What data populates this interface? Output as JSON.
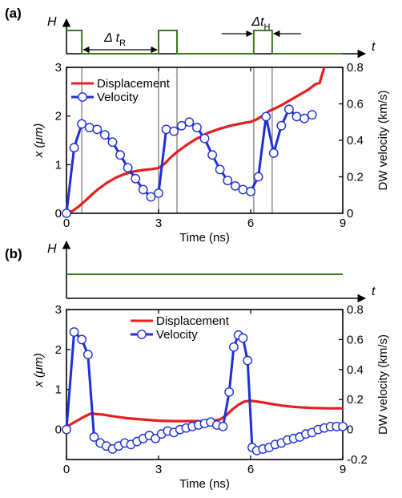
{
  "colors": {
    "displacement": "#e61e1e",
    "velocity": "#1e2fd6",
    "pulse": "#3a7a1e",
    "guide": "#a0a0a0"
  },
  "panels": [
    {
      "label": "(a)",
      "h_symbol": "H",
      "t_symbol": "t",
      "annot_tR": "Δ t",
      "annot_tR_sub": "R",
      "annot_tH": "Δt",
      "annot_tH_sub": "H"
    },
    {
      "label": "(b)",
      "h_symbol": "H",
      "t_symbol": "t"
    }
  ],
  "chart_data": [
    {
      "type": "line",
      "panel": "a",
      "xlabel": "Time (ns)",
      "ylabel_left": "x (μm)",
      "ylabel_right": "DW velocity (km/s)",
      "xlim": [
        0,
        9
      ],
      "ylim_left": [
        0,
        3
      ],
      "ylim_right": [
        0,
        0.8
      ],
      "xticks": [
        "0",
        "3",
        "6",
        "9"
      ],
      "yticks_left": [
        "0",
        "1",
        "2",
        "3"
      ],
      "yticks_right": [
        "0",
        "0.2",
        "0.4",
        "0.6",
        "0.8"
      ],
      "legend": [
        "Displacement",
        "Velocity"
      ],
      "legend_position": "top-left",
      "guide_lines_x": [
        0.5,
        3.0,
        3.6,
        6.1,
        6.7
      ],
      "pulse_field": [
        {
          "start": 0,
          "end": 0.5
        },
        {
          "start": 3.0,
          "end": 3.6
        },
        {
          "start": 6.1,
          "end": 6.7
        }
      ],
      "series": [
        {
          "name": "Displacement",
          "axis": "left",
          "x": [
            0,
            0.2,
            0.4,
            0.6,
            0.8,
            1.0,
            1.3,
            1.6,
            1.9,
            2.2,
            2.5,
            2.8,
            3.0,
            3.2,
            3.4,
            3.6,
            3.9,
            4.2,
            4.6,
            5.0,
            5.4,
            5.8,
            6.0,
            6.2,
            6.4,
            6.6,
            6.8,
            7.0,
            7.3,
            7.6,
            7.9,
            8.1,
            8.25,
            8.3,
            8.4
          ],
          "y": [
            0,
            0.05,
            0.14,
            0.25,
            0.37,
            0.48,
            0.62,
            0.73,
            0.81,
            0.86,
            0.89,
            0.91,
            0.93,
            1.02,
            1.15,
            1.26,
            1.4,
            1.52,
            1.65,
            1.74,
            1.81,
            1.86,
            1.88,
            1.93,
            2.01,
            2.1,
            2.16,
            2.22,
            2.33,
            2.44,
            2.55,
            2.65,
            2.68,
            2.8,
            3.0
          ]
        },
        {
          "name": "Velocity",
          "axis": "right",
          "x": [
            0,
            0.25,
            0.5,
            0.75,
            1.0,
            1.25,
            1.5,
            1.75,
            2.0,
            2.25,
            2.5,
            2.75,
            3.0,
            3.25,
            3.5,
            3.75,
            4.0,
            4.25,
            4.5,
            4.75,
            5.0,
            5.25,
            5.5,
            5.75,
            6.0,
            6.25,
            6.5,
            6.75,
            7.0,
            7.25,
            7.5,
            7.75,
            8.0
          ],
          "y": [
            0,
            0.36,
            0.49,
            0.47,
            0.46,
            0.43,
            0.39,
            0.32,
            0.25,
            0.19,
            0.13,
            0.09,
            0.11,
            0.46,
            0.45,
            0.48,
            0.5,
            0.47,
            0.41,
            0.32,
            0.24,
            0.18,
            0.15,
            0.13,
            0.12,
            0.2,
            0.53,
            0.33,
            0.48,
            0.57,
            0.53,
            0.52,
            0.54
          ]
        }
      ]
    },
    {
      "type": "line",
      "panel": "b",
      "xlabel": "Time (ns)",
      "ylabel_left": "x (μm)",
      "ylabel_right": "DW velocity (km/s)",
      "xlim": [
        0,
        9
      ],
      "ylim_left": [
        -0.75,
        3
      ],
      "ylim_right": [
        -0.2,
        0.8
      ],
      "xticks": [
        "0",
        "3",
        "6",
        "9"
      ],
      "yticks_left": [
        "0",
        "1",
        "2",
        "3"
      ],
      "yticks_right": [
        "-0.2",
        "0",
        "0.2",
        "0.4",
        "0.6",
        "0.8"
      ],
      "legend": [
        "Displacement",
        "Velocity"
      ],
      "legend_position": "top-center",
      "constant_field": true,
      "series": [
        {
          "name": "Displacement",
          "axis": "left",
          "x": [
            0,
            0.3,
            0.6,
            0.8,
            1.2,
            1.6,
            2.0,
            2.5,
            3.0,
            3.5,
            4.0,
            4.5,
            4.8,
            5.0,
            5.2,
            5.4,
            5.6,
            5.8,
            6.0,
            6.3,
            6.6,
            7.0,
            7.5,
            8.0,
            8.5,
            9.0
          ],
          "y": [
            0.07,
            0.2,
            0.33,
            0.4,
            0.37,
            0.32,
            0.28,
            0.25,
            0.22,
            0.21,
            0.21,
            0.21,
            0.22,
            0.25,
            0.35,
            0.5,
            0.62,
            0.7,
            0.72,
            0.69,
            0.65,
            0.6,
            0.56,
            0.54,
            0.53,
            0.53
          ]
        },
        {
          "name": "Velocity",
          "axis": "right",
          "x": [
            0,
            0.25,
            0.5,
            0.7,
            0.9,
            1.1,
            1.3,
            1.5,
            1.7,
            1.9,
            2.1,
            2.3,
            2.5,
            2.7,
            2.9,
            3.1,
            3.3,
            3.5,
            3.7,
            3.9,
            4.1,
            4.3,
            4.5,
            4.7,
            4.9,
            5.1,
            5.3,
            5.45,
            5.6,
            5.75,
            5.9,
            6.05,
            6.2,
            6.4,
            6.6,
            6.8,
            7.0,
            7.2,
            7.4,
            7.6,
            7.8,
            8.0,
            8.2,
            8.4,
            8.6,
            8.8,
            9.0
          ],
          "y": [
            0.0,
            0.65,
            0.6,
            0.5,
            -0.05,
            -0.09,
            -0.11,
            -0.13,
            -0.11,
            -0.09,
            -0.1,
            -0.08,
            -0.06,
            -0.04,
            -0.06,
            -0.03,
            -0.01,
            -0.02,
            0.0,
            0.01,
            0.02,
            0.03,
            0.04,
            0.05,
            0.03,
            0.02,
            0.25,
            0.55,
            0.63,
            0.61,
            0.46,
            -0.12,
            -0.14,
            -0.13,
            -0.12,
            -0.1,
            -0.09,
            -0.07,
            -0.06,
            -0.05,
            -0.03,
            -0.02,
            0.0,
            0.01,
            0.02,
            0.02,
            0.02
          ]
        }
      ]
    }
  ]
}
